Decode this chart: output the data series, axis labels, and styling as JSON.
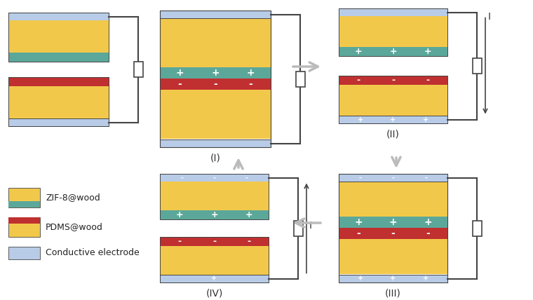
{
  "colors": {
    "yellow": "#F2C84B",
    "green": "#5BA89A",
    "red": "#C03030",
    "blue_electrode": "#B8CCE8",
    "white": "#FFFFFF",
    "arrow_gray": "#BBBBBB",
    "line_color": "#444444"
  },
  "legend": {
    "zif_label": "ZIF-8@wood",
    "pdms_label": "PDMS@wood",
    "electrode_label": "Conductive electrode"
  },
  "panel_labels": [
    "(I)",
    "(II)",
    "(III)",
    "(IV)"
  ],
  "current_label": "I"
}
